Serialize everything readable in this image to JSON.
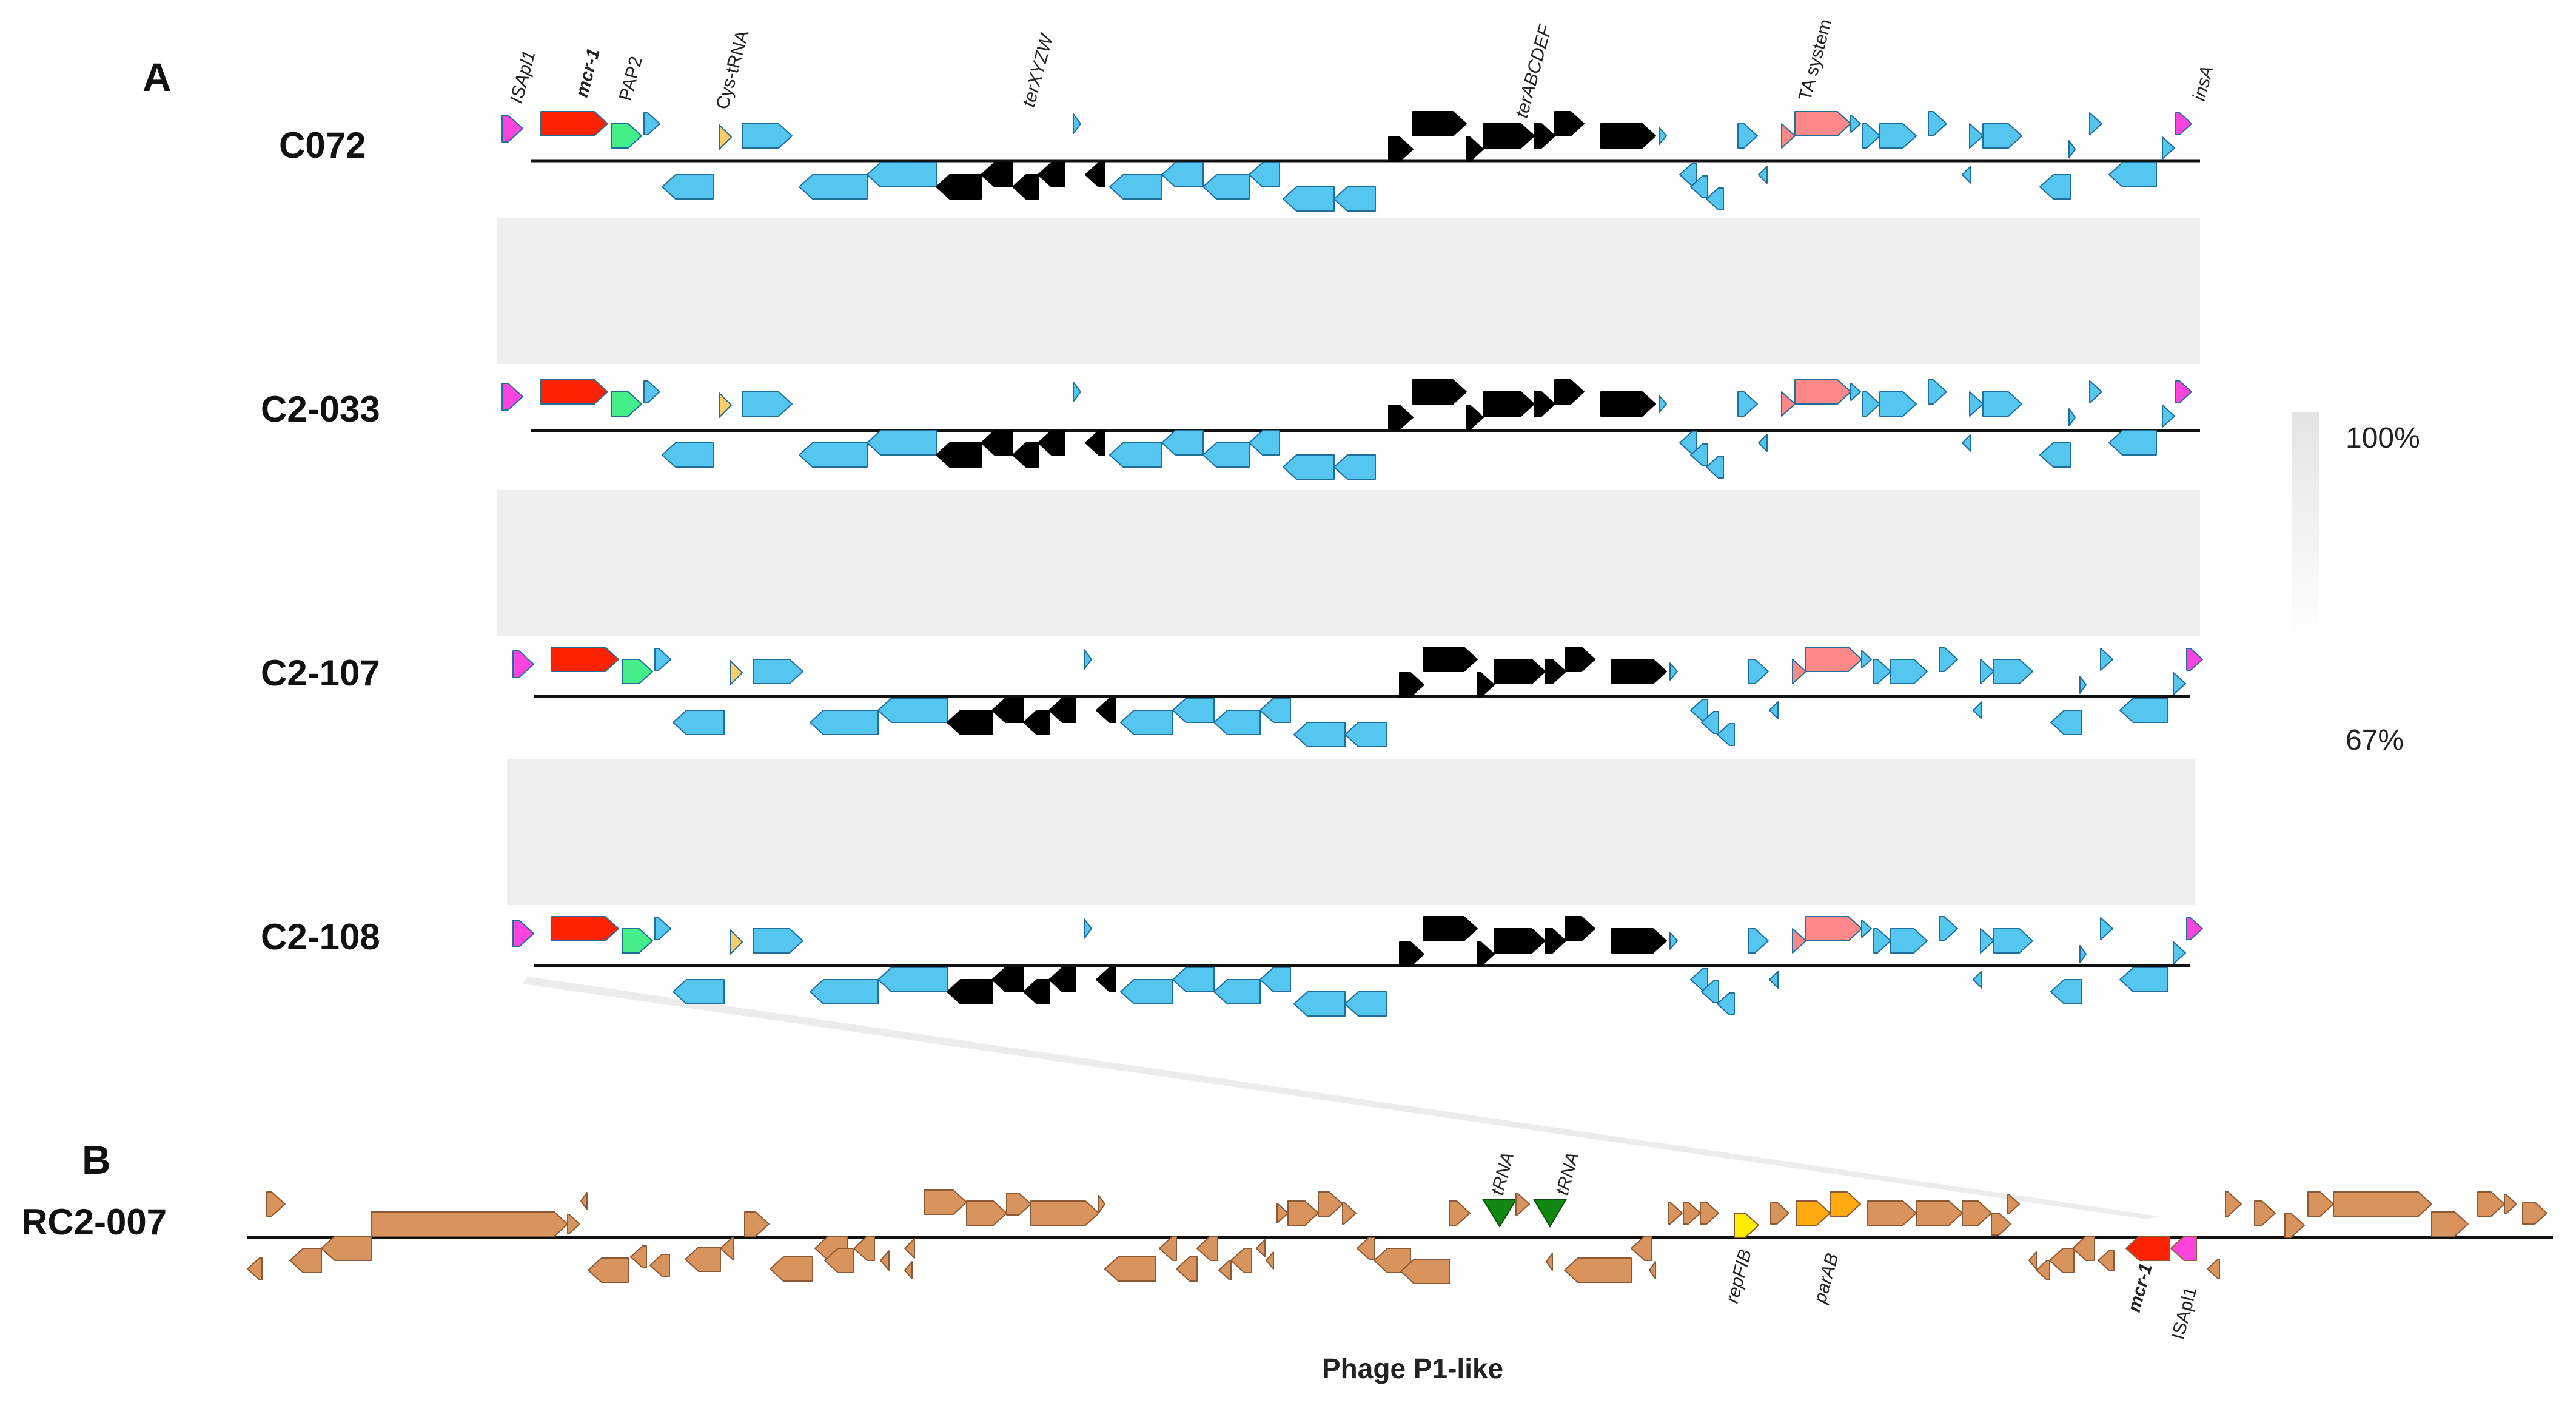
{
  "panel_a": {
    "letter": "A",
    "tracks": [
      {
        "name": "C072"
      },
      {
        "name": "C2-033"
      },
      {
        "name": "C2-107"
      },
      {
        "name": "C2-108"
      }
    ],
    "gene_labels": [
      {
        "text": "ISApl1",
        "italic": true,
        "bold": false
      },
      {
        "text": "mcr-1",
        "italic": true,
        "bold": true
      },
      {
        "text": "PAP2",
        "italic": false,
        "bold": false
      },
      {
        "text": "Cys-tRNA",
        "italic": false,
        "bold": false
      },
      {
        "text": "terXYZW",
        "italic": true,
        "bold": false
      },
      {
        "text": "terABCDEF",
        "italic": true,
        "bold": false
      },
      {
        "text": "TA system",
        "italic": false,
        "bold": false
      },
      {
        "text": "insA",
        "italic": true,
        "bold": false
      }
    ],
    "identity_legend": {
      "max": "100%",
      "min": "67%"
    }
  },
  "panel_b": {
    "letter": "B",
    "track": {
      "name": "RC2-007"
    },
    "gene_labels_top": [
      {
        "text": "tRNA",
        "italic": true
      },
      {
        "text": "tRNA",
        "italic": true
      }
    ],
    "gene_labels_bottom": [
      {
        "text": "repFIB",
        "italic": true,
        "bold": false
      },
      {
        "text": "parAB",
        "italic": true,
        "bold": false
      },
      {
        "text": "mcr-1",
        "italic": true,
        "bold": true
      },
      {
        "text": "ISApl1",
        "italic": false,
        "bold": false
      }
    ],
    "caption": "Phage P1-like"
  },
  "colors": {
    "is_element": "#ff44dd",
    "mcr1": "#ff2200",
    "pap2": "#44ee88",
    "trna_small": "#ffcc66",
    "hypothetical": "#55c6f0",
    "tellurite": "#000000",
    "ta_system": "#ff8888",
    "phage": "#d9935c",
    "repfib": "#ffee00",
    "parab": "#ffaa11",
    "trna_b": "#118811",
    "synteny_band": "#eef0ef"
  }
}
